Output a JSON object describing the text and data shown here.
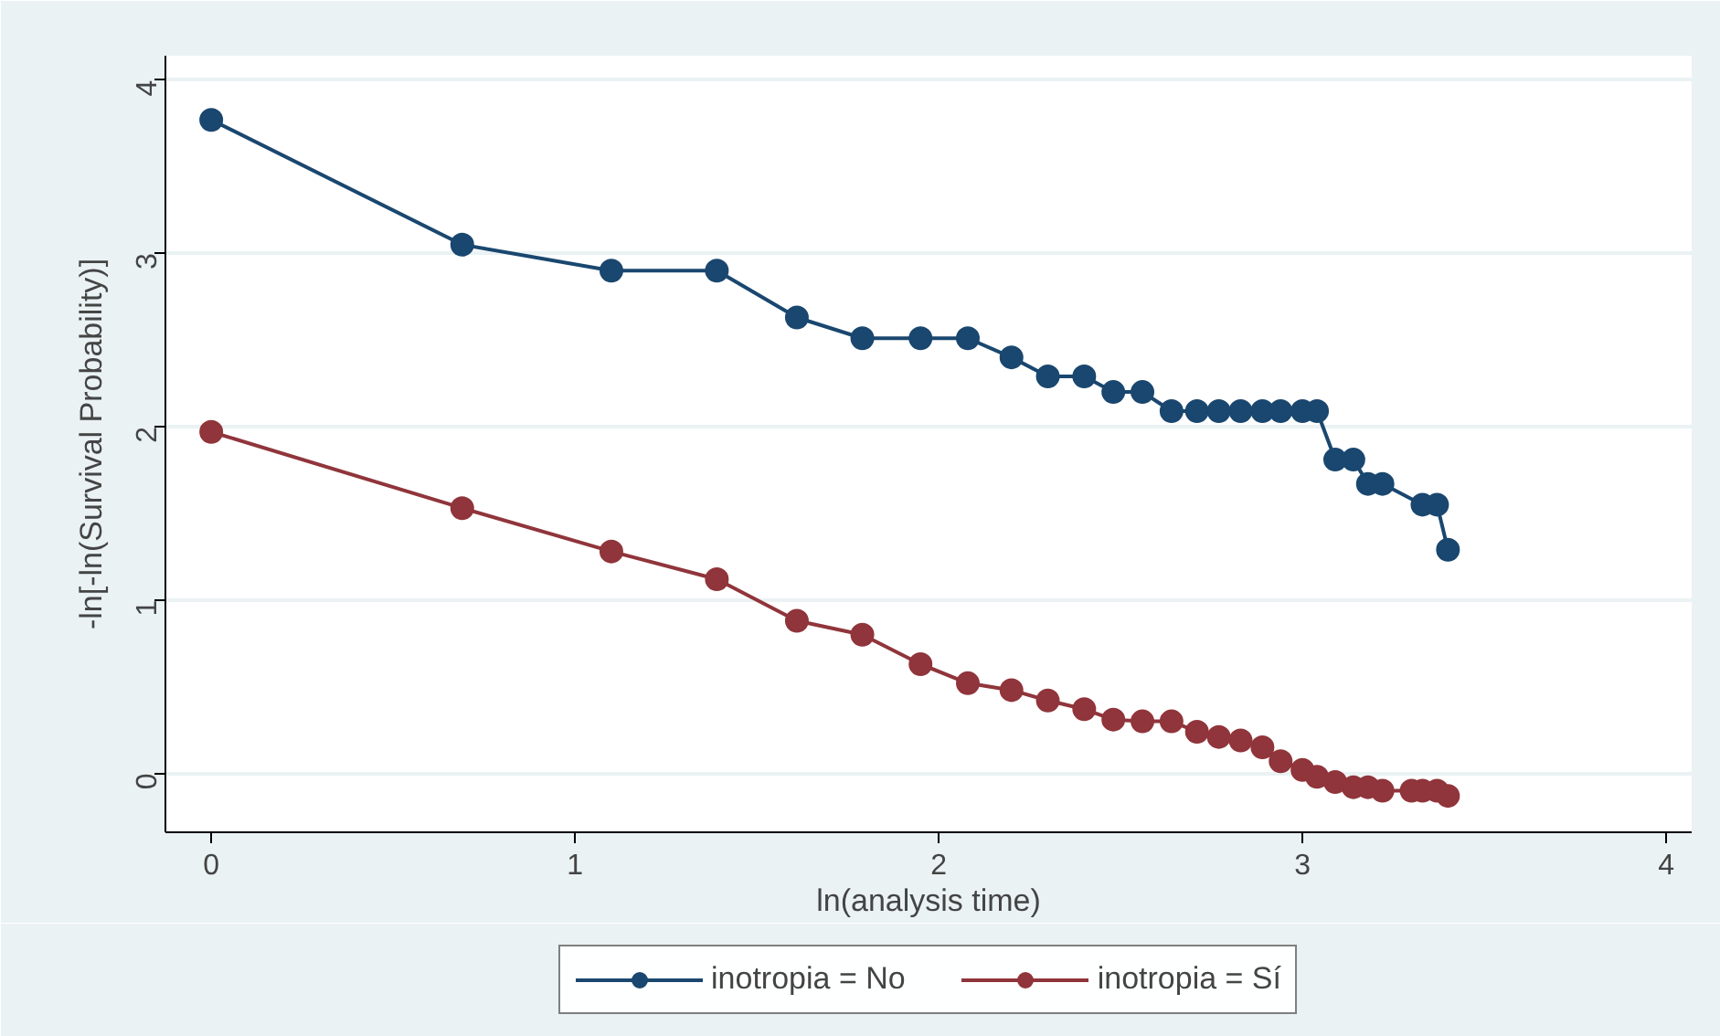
{
  "chart_data": {
    "type": "line",
    "xlabel": "ln(analysis time)",
    "ylabel": "-ln[-ln(Survival Probability)]",
    "xlim": [
      -0.126,
      4.07
    ],
    "ylim": [
      -0.34,
      4.14
    ],
    "xticks": [
      0,
      1,
      2,
      3,
      4
    ],
    "yticks": [
      0,
      1,
      2,
      3,
      4
    ],
    "grid": "y",
    "legend": "bottom",
    "marker": "circle",
    "line_style": "solid",
    "series": [
      {
        "name": "inotropia = No",
        "color": "#1a476f",
        "x": [
          0,
          0.69,
          1.1,
          1.39,
          1.61,
          1.79,
          1.95,
          2.08,
          2.2,
          2.3,
          2.4,
          2.48,
          2.56,
          2.64,
          2.71,
          2.77,
          2.83,
          2.89,
          2.94,
          3.0,
          3.04,
          3.09,
          3.14,
          3.18,
          3.22,
          3.33,
          3.37,
          3.4
        ],
        "values": [
          3.77,
          3.05,
          2.9,
          2.9,
          2.63,
          2.51,
          2.51,
          2.51,
          2.4,
          2.29,
          2.29,
          2.2,
          2.2,
          2.09,
          2.09,
          2.09,
          2.09,
          2.09,
          2.09,
          2.09,
          2.09,
          1.81,
          1.81,
          1.67,
          1.67,
          1.55,
          1.55,
          1.29
        ]
      },
      {
        "name": "inotropia = Sí",
        "color": "#90353b",
        "x": [
          0,
          0.69,
          1.1,
          1.39,
          1.61,
          1.79,
          1.95,
          2.08,
          2.2,
          2.3,
          2.4,
          2.48,
          2.56,
          2.64,
          2.71,
          2.77,
          2.83,
          2.89,
          2.94,
          3.0,
          3.04,
          3.09,
          3.14,
          3.18,
          3.22,
          3.3,
          3.33,
          3.37,
          3.4
        ],
        "values": [
          1.97,
          1.53,
          1.28,
          1.12,
          0.88,
          0.8,
          0.63,
          0.52,
          0.48,
          0.42,
          0.37,
          0.31,
          0.3,
          0.3,
          0.24,
          0.21,
          0.19,
          0.15,
          0.07,
          0.02,
          -0.02,
          -0.05,
          -0.08,
          -0.08,
          -0.1,
          -0.1,
          -0.1,
          -0.1,
          -0.13
        ]
      }
    ]
  }
}
